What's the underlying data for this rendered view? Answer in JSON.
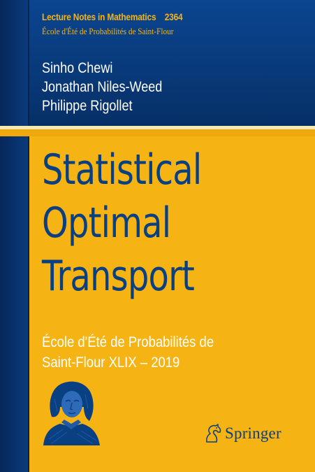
{
  "series": {
    "name": "Lecture Notes in Mathematics",
    "number": "2364",
    "subseries": "École d'Été de Probabilités de Saint-Flour"
  },
  "authors": [
    "Sinho Chewi",
    "Jonathan Niles-Weed",
    "Philippe Rigollet"
  ],
  "title_lines": [
    "Statistical",
    "Optimal",
    "Transport"
  ],
  "subtitle_lines": [
    "École d'Été de Probabilités de",
    "Saint-Flour XLIX – 2019"
  ],
  "publisher": {
    "name": "Springer",
    "logo_icon": "springer-horse-icon"
  },
  "colors": {
    "navy": "#0a3f82",
    "gold": "#f6b414",
    "cream": "#f5e9b6",
    "white": "#ffffff"
  }
}
